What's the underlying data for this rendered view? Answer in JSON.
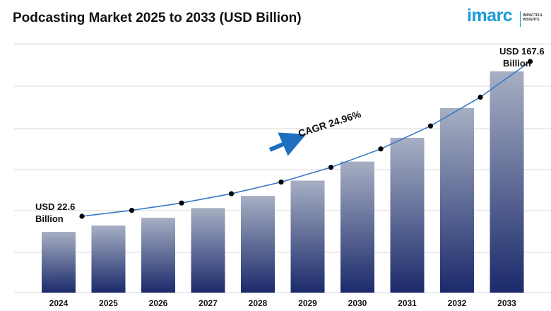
{
  "title": "Podcasting Market 2025 to 2033 (USD Billion)",
  "logo": {
    "word": "imarc",
    "tag_line1": "IMPACTFUL",
    "tag_line2": "INSIGHTS"
  },
  "colors": {
    "bar_top": "#a7afc3",
    "bar_bottom": "#1b2a6b",
    "line": "#3a78c9",
    "marker": "#000000",
    "arrow": "#1f6fbe",
    "grid": "#d9d9d9"
  },
  "chart_data": {
    "type": "bar",
    "title": "Podcasting Market 2025 to 2033 (USD Billion)",
    "xlabel": "",
    "ylabel": "",
    "categories": [
      "2024",
      "2025",
      "2026",
      "2027",
      "2028",
      "2029",
      "2030",
      "2031",
      "2032",
      "2033"
    ],
    "values": [
      22.6,
      28.3,
      35.3,
      44.1,
      55.1,
      68.9,
      86.1,
      107.6,
      134.4,
      167.6
    ],
    "grid": true,
    "annotations": {
      "start_line1": "USD 22.6",
      "start_line2": "Billion",
      "end_line1": "USD 167.6",
      "end_line2": "Billion",
      "cagr": "CAGR 24.96%"
    }
  }
}
